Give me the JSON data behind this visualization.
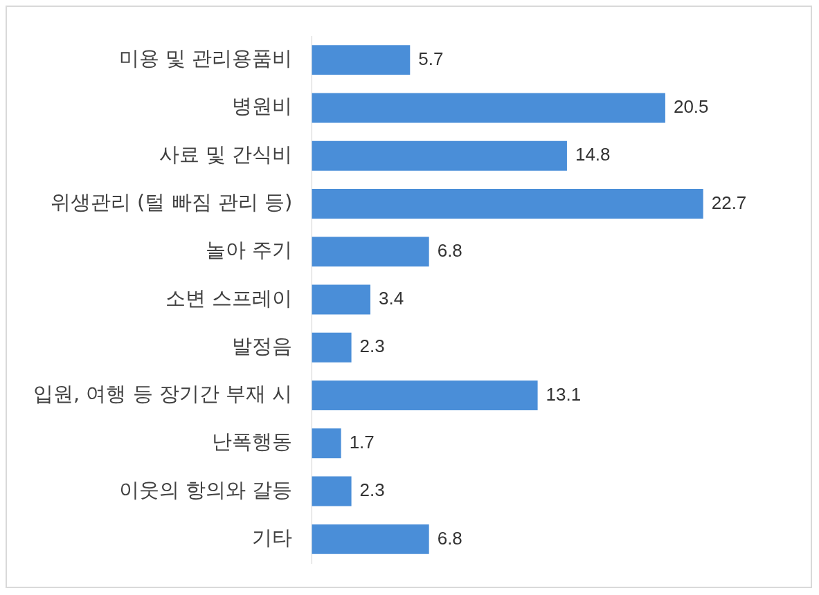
{
  "chart_data": {
    "type": "bar",
    "orientation": "horizontal",
    "categories": [
      "미용 및 관리용품비",
      "병원비",
      "사료 및 간식비",
      "위생관리 (털 빠짐 관리 등)",
      "놀아 주기",
      "소변 스프레이",
      "발정음",
      "입원, 여행 등 장기간 부재 시",
      "난폭행동",
      "이웃의 항의와 갈등",
      "기타"
    ],
    "values": [
      5.7,
      20.5,
      14.8,
      22.7,
      6.8,
      3.4,
      2.3,
      13.1,
      1.7,
      2.3,
      6.8
    ],
    "color": "#4a8ed8",
    "data_labels": true,
    "grid": false,
    "legend": false,
    "tick_labels": "y"
  }
}
